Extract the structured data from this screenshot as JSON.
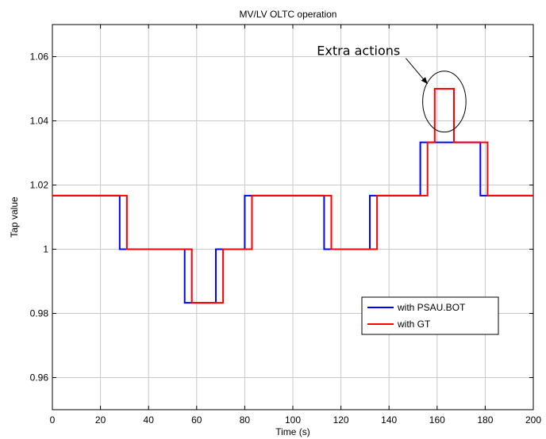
{
  "chart_data": {
    "type": "line",
    "title": "MV/LV OLTC operation",
    "xlabel": "Time (s)",
    "ylabel": "Tap value",
    "xlim": [
      0,
      200
    ],
    "ylim": [
      0.95,
      1.07
    ],
    "xticks": [
      0,
      20,
      40,
      60,
      80,
      100,
      120,
      140,
      160,
      180,
      200
    ],
    "yticks": [
      0.96,
      0.98,
      1.0,
      1.02,
      1.04,
      1.06
    ],
    "ytick_labels": [
      "0.96",
      "0.98",
      "1",
      "1.02",
      "1.04",
      "1.06"
    ],
    "grid": true,
    "legend_position": "lower-right",
    "series": [
      {
        "name": "with PSAU.BOT",
        "color": "#0000ff",
        "step": true,
        "x": [
          0,
          28,
          28,
          55,
          55,
          68,
          68,
          80,
          80,
          113,
          113,
          132,
          132,
          153,
          153,
          178,
          178,
          200
        ],
        "y": [
          1.0167,
          1.0167,
          1.0,
          1.0,
          0.9833,
          0.9833,
          1.0,
          1.0,
          1.0167,
          1.0167,
          1.0,
          1.0,
          1.0167,
          1.0167,
          1.0333,
          1.0333,
          1.0167,
          1.0167
        ]
      },
      {
        "name": "with GT",
        "color": "#ff0000",
        "step": true,
        "x": [
          0,
          31,
          31,
          58,
          58,
          71,
          71,
          83,
          83,
          116,
          116,
          135,
          135,
          156,
          156,
          159,
          159,
          167,
          167,
          181,
          181,
          200
        ],
        "y": [
          1.0167,
          1.0167,
          1.0,
          1.0,
          0.9833,
          0.9833,
          1.0,
          1.0,
          1.0167,
          1.0167,
          1.0,
          1.0,
          1.0167,
          1.0167,
          1.0333,
          1.0333,
          1.05,
          1.05,
          1.0333,
          1.0333,
          1.0167,
          1.0167
        ]
      }
    ],
    "annotation": {
      "text": "Extra actions",
      "text_x": 110,
      "text_y": 1.0605,
      "arrow_from_x": 147,
      "arrow_from_y": 1.0595,
      "arrow_to_x": 156,
      "arrow_to_y": 1.0515,
      "ellipse_cx": 163,
      "ellipse_cy": 1.046,
      "ellipse_rx": 9,
      "ellipse_ry": 0.0095
    }
  }
}
